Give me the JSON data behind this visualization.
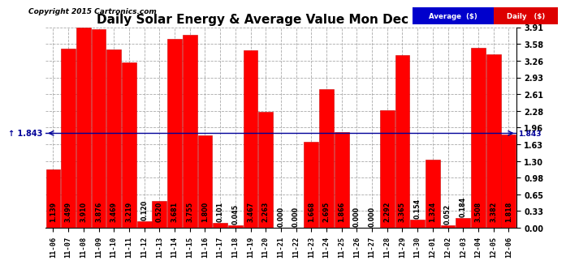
{
  "title": "Daily Solar Energy & Average Value Mon Dec 7 16:19",
  "copyright": "Copyright 2015 Cartronics.com",
  "categories": [
    "11-06",
    "11-07",
    "11-08",
    "11-09",
    "11-10",
    "11-11",
    "11-12",
    "11-13",
    "11-14",
    "11-15",
    "11-16",
    "11-17",
    "11-18",
    "11-19",
    "11-20",
    "11-21",
    "11-22",
    "11-23",
    "11-24",
    "11-25",
    "11-26",
    "11-27",
    "11-28",
    "11-29",
    "11-30",
    "12-01",
    "12-02",
    "12-03",
    "12-04",
    "12-05",
    "12-06"
  ],
  "values": [
    1.139,
    3.499,
    3.91,
    3.876,
    3.469,
    3.219,
    0.12,
    0.52,
    3.681,
    3.755,
    1.8,
    0.101,
    0.045,
    3.467,
    2.263,
    0.0,
    0.0,
    1.668,
    2.695,
    1.866,
    0.0,
    0.0,
    2.292,
    3.365,
    0.154,
    1.324,
    0.052,
    0.184,
    3.508,
    3.382,
    1.818
  ],
  "average": 1.843,
  "bar_color": "#ff0000",
  "bar_edge_color": "#cc0000",
  "avg_line_color": "#000099",
  "background_color": "#ffffff",
  "grid_color": "#aaaaaa",
  "ylim": [
    0,
    3.91
  ],
  "yticks": [
    0.0,
    0.33,
    0.65,
    0.98,
    1.3,
    1.63,
    1.96,
    2.28,
    2.61,
    2.93,
    3.26,
    3.58,
    3.91
  ],
  "title_fontsize": 11,
  "label_fontsize": 5.8,
  "xtick_fontsize": 6.2,
  "ytick_fontsize": 7.0,
  "legend_avg_color": "#0000cc",
  "legend_daily_color": "#dd0000",
  "avg_label": "Average  ($)",
  "daily_label": "Daily   ($)"
}
